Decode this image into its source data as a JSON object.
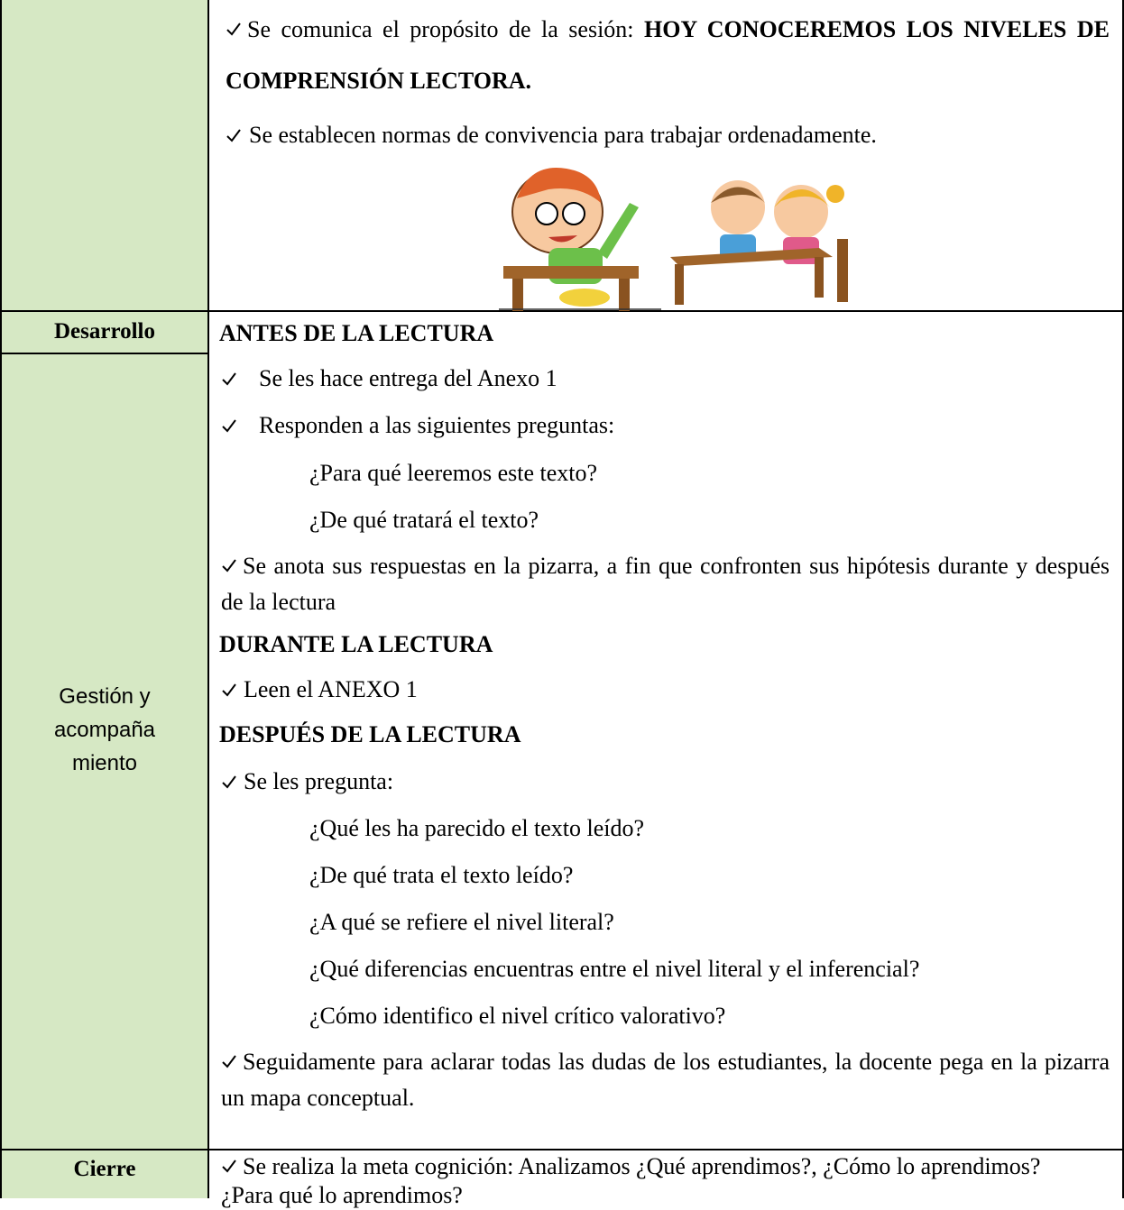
{
  "rows": [
    {
      "content": {
        "purpose": {
          "text": "Se comunica el propósito de la sesión: ",
          "emphasis": "HOY CONOCEREMOS LOS NIVELES DE COMPRENSIÓN LECTORA."
        },
        "norms": "Se establecen normas de convivencia para trabajar ordenadamente."
      }
    },
    {
      "label": "Desarrollo",
      "sublabel": [
        "Gestión y",
        "acompaña",
        "miento"
      ],
      "content": {
        "before": {
          "heading": "ANTES DE LA LECTURA",
          "items": [
            "Se les hace entrega del Anexo 1",
            "Responden a las siguientes preguntas:"
          ],
          "questions": [
            "¿Para qué leeremos este texto?",
            "¿De qué tratará el texto?"
          ],
          "note": "Se anota sus respuestas en la pizarra, a fin que confronten sus hipótesis durante y después de la lectura"
        },
        "during": {
          "heading": "DURANTE LA LECTURA",
          "items": [
            "Leen el ANEXO 1"
          ]
        },
        "after": {
          "heading": "DESPUÉS DE LA LECTURA",
          "items": [
            "Se les pregunta:"
          ],
          "questions": [
            "¿Qué les ha parecido el texto leído?",
            "¿De qué trata el texto leído?",
            "¿A qué se refiere el nivel literal?",
            "¿Qué diferencias encuentras entre el nivel literal y el inferencial?",
            "¿Cómo identifico el nivel crítico valorativo?"
          ],
          "note": "Seguidamente para aclarar todas las dudas de los estudiantes, la docente pega en la pizarra un mapa conceptual."
        }
      }
    },
    {
      "label": "Cierre",
      "content": {
        "note": "Se realiza la meta cognición: Analizamos ¿Qué aprendimos?, ¿Cómo lo aprendimos? ¿Para qué lo aprendimos?"
      }
    }
  ]
}
